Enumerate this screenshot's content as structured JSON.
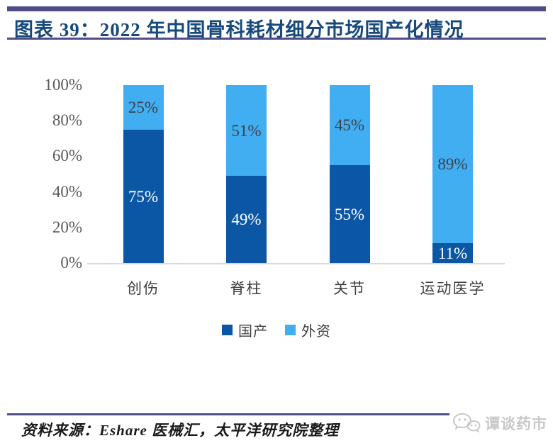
{
  "header": {
    "title": "图表 39：2022 年中国骨科耗材细分市场国产化情况"
  },
  "chart_data": {
    "type": "bar",
    "subtype": "stacked-100-percent",
    "title": "2022 年中国骨科耗材细分市场国产化情况",
    "categories": [
      "创伤",
      "脊柱",
      "关节",
      "运动医学"
    ],
    "series": [
      {
        "name": "国产",
        "color": "#0b57a5",
        "label_color": "#ffffff",
        "values": [
          75,
          49,
          55,
          11
        ]
      },
      {
        "name": "外资",
        "color": "#41aef2",
        "label_color": "#3f4049",
        "values": [
          25,
          51,
          45,
          89
        ]
      }
    ],
    "unit": "%",
    "y_axis": {
      "ticks": [
        "100%",
        "80%",
        "60%",
        "40%",
        "20%",
        "0%"
      ],
      "min": 0,
      "max": 100
    },
    "grid": false,
    "legend_position": "bottom"
  },
  "footer": {
    "source": "资料来源：Eshare 医械汇，太平洋研究院整理",
    "watermark": "谭谈药市",
    "watermark_icon": "chat-bubbles-icon"
  },
  "colors": {
    "rule": "#4e4d87",
    "title": "#17497d",
    "axis_line": "#d9d9d9",
    "tick_label": "#595959",
    "category_label": "#3f3f3f",
    "domestic_bar": "#0b57a5",
    "foreign_bar": "#41aef2",
    "watermark": "#c8c8c8"
  }
}
